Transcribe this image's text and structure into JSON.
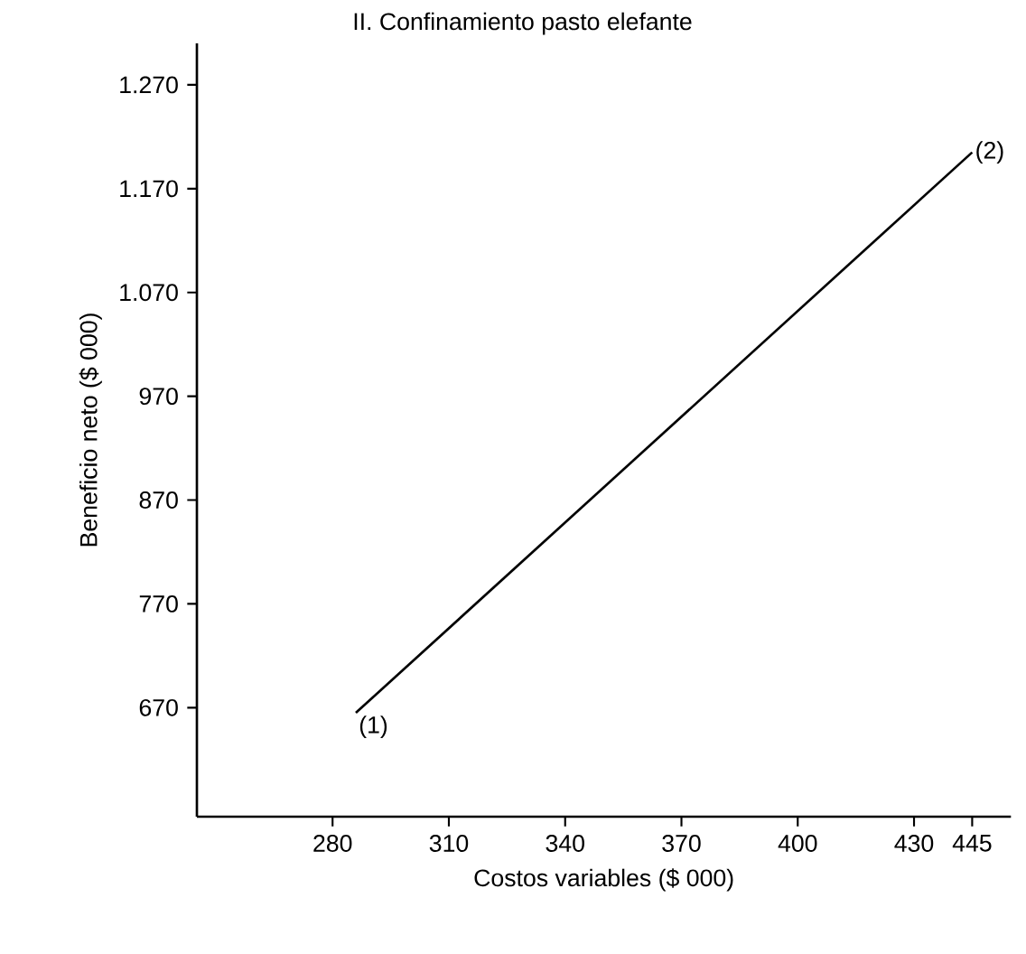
{
  "chart_data": {
    "type": "line",
    "title": "II.  Confinamiento pasto elefante",
    "xlabel": "Costos variables ($ 000)",
    "ylabel": "Beneficio neto ($ 000)",
    "x": [
      286,
      445
    ],
    "series": [
      {
        "color": "#000000",
        "values": [
          665,
          1205
        ]
      }
    ],
    "xlim": [
      245,
      455
    ],
    "ylim": [
      565,
      1310
    ],
    "xticks": [
      280,
      310,
      340,
      370,
      400,
      430,
      445
    ],
    "yticks": [
      {
        "value": 670,
        "label": "670"
      },
      {
        "value": 770,
        "label": "770"
      },
      {
        "value": 870,
        "label": "870"
      },
      {
        "value": 970,
        "label": "970"
      },
      {
        "value": 1070,
        "label": "1.070"
      },
      {
        "value": 1170,
        "label": "1.170"
      },
      {
        "value": 1270,
        "label": "1.270"
      }
    ],
    "annotations": [
      {
        "text": "(1)",
        "x": 286,
        "y": 665
      },
      {
        "text": "(2)",
        "x": 445,
        "y": 1205
      }
    ],
    "grid": false,
    "marker": "none",
    "line_style": "solid"
  }
}
